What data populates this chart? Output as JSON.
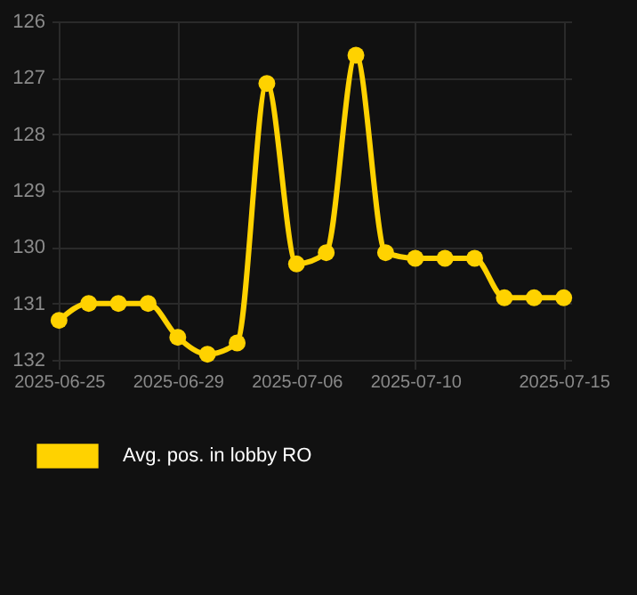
{
  "chart_data": {
    "type": "line",
    "categories": [
      "2025-06-25",
      null,
      null,
      null,
      "2025-06-29",
      null,
      null,
      null,
      "2025-07-06",
      null,
      null,
      null,
      "2025-07-10",
      null,
      null,
      null,
      null,
      "2025-07-15"
    ],
    "series": [
      {
        "name": "Avg. pos. in lobby RO",
        "color": "#ffd200",
        "values": [
          131.3,
          131.0,
          131.0,
          131.0,
          131.6,
          131.9,
          131.7,
          127.1,
          130.3,
          130.1,
          126.6,
          130.1,
          130.2,
          130.2,
          130.2,
          130.9,
          130.9,
          130.9
        ]
      }
    ],
    "ylim": [
      132,
      126
    ],
    "yticks": [
      126,
      127,
      128,
      129,
      130,
      131,
      132
    ],
    "grid": true,
    "legend": "bottom",
    "marker": "circle"
  }
}
